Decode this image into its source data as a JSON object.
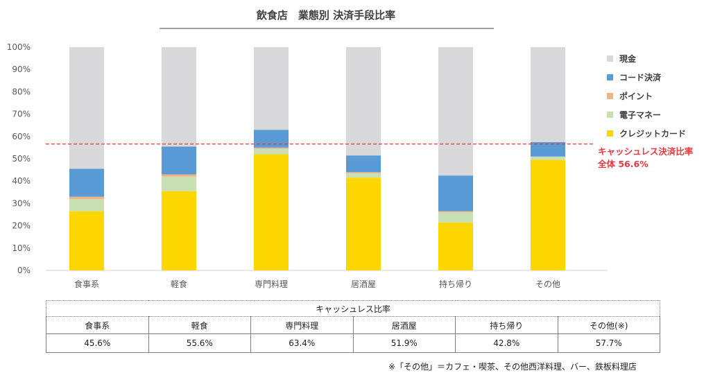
{
  "chart_data": {
    "type": "bar",
    "stacked": true,
    "title": "飲食店　業態別 決済手段比率",
    "categories": [
      "食事系",
      "軽食",
      "専門料理",
      "居酒屋",
      "持ち帰り",
      "その他"
    ],
    "ylim": [
      0,
      100
    ],
    "yticks": [
      "0%",
      "10%",
      "20%",
      "30%",
      "40%",
      "50%",
      "60%",
      "70%",
      "80%",
      "90%",
      "100%"
    ],
    "series": [
      {
        "name": "クレジットカード",
        "color": "#ffd700",
        "values": [
          26.5,
          35.5,
          52.0,
          41.5,
          21.5,
          49.5
        ]
      },
      {
        "name": "電子マネー",
        "color": "#c8e0b4",
        "values": [
          5.5,
          6.5,
          2.5,
          2.0,
          4.5,
          1.5
        ]
      },
      {
        "name": "ポイント",
        "color": "#f4b183",
        "values": [
          1.0,
          1.0,
          0.5,
          0.5,
          0.5,
          0.0
        ]
      },
      {
        "name": "コード決済",
        "color": "#5b9bd5",
        "values": [
          12.5,
          12.5,
          8.0,
          7.5,
          16.0,
          6.5
        ]
      },
      {
        "name": "現金",
        "color": "#d9d9dc",
        "values": [
          54.5,
          44.5,
          37.0,
          48.5,
          57.5,
          42.5
        ]
      }
    ],
    "legend": {
      "placement": "right",
      "order": [
        "現金",
        "コード決済",
        "ポイント",
        "電子マネー",
        "クレジットカード"
      ]
    },
    "reference_line": {
      "value": 56.6,
      "color": "#e8393f",
      "label_line1": "キャッシュレス決済比率",
      "label_line2": "全体 56.6%"
    },
    "grid": false
  },
  "table": {
    "caption": "キャッシュレス比率",
    "headers": [
      "食事系",
      "軽食",
      "専門料理",
      "居酒屋",
      "持ち帰り",
      "その他(※)"
    ],
    "values": [
      "45.6%",
      "55.6%",
      "63.4%",
      "51.9%",
      "42.8%",
      "57.7%"
    ]
  },
  "footnote": "※「その他」＝カフェ・喫茶、その他西洋料理、バー、鉄板料理店"
}
